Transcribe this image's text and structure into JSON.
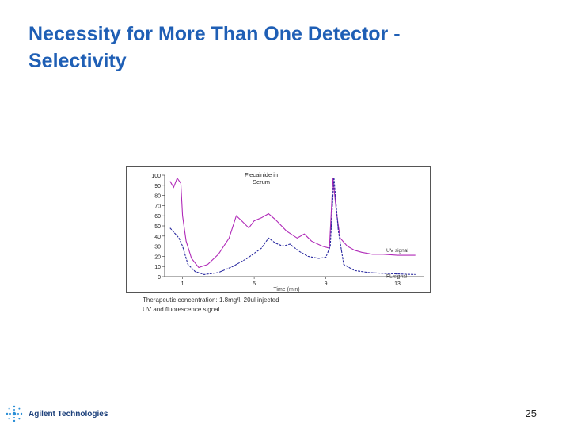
{
  "slide": {
    "title_line1": "Necessity for More Than One Detector -",
    "title_line2": "Selectivity",
    "page_number": "25",
    "logo_text": "Agilent Technologies",
    "caption_1": "Therapeutic concentration: 1.8mg/l. 20ul injected",
    "caption_2": "UV and fluorescence signal",
    "title_color": "#1f5fb5"
  },
  "chart_data": {
    "type": "line",
    "title": "Flecainide in Serum",
    "xlabel": "Time (min)",
    "x_ticks": [
      1,
      5,
      9,
      13
    ],
    "xlim": [
      0,
      14.5
    ],
    "y_ticks": [
      "100",
      "90",
      "80",
      "70",
      "60",
      "50",
      "40",
      "30",
      "20",
      "10",
      "0"
    ],
    "ylim": [
      0,
      100
    ],
    "series": [
      {
        "name": "UV signal",
        "color": "#b02ab8",
        "points": [
          [
            0.3,
            94
          ],
          [
            0.5,
            88
          ],
          [
            0.7,
            97
          ],
          [
            0.9,
            92
          ],
          [
            1.0,
            60
          ],
          [
            1.2,
            35
          ],
          [
            1.5,
            18
          ],
          [
            1.9,
            9
          ],
          [
            2.4,
            12
          ],
          [
            3.0,
            22
          ],
          [
            3.6,
            38
          ],
          [
            4.0,
            60
          ],
          [
            4.3,
            55
          ],
          [
            4.7,
            48
          ],
          [
            5.0,
            55
          ],
          [
            5.4,
            58
          ],
          [
            5.8,
            62
          ],
          [
            6.2,
            56
          ],
          [
            6.8,
            45
          ],
          [
            7.4,
            38
          ],
          [
            7.8,
            42
          ],
          [
            8.2,
            35
          ],
          [
            8.8,
            30
          ],
          [
            9.2,
            28
          ],
          [
            9.4,
            97
          ],
          [
            9.6,
            62
          ],
          [
            9.8,
            38
          ],
          [
            10.2,
            30
          ],
          [
            10.6,
            26
          ],
          [
            11.0,
            24
          ],
          [
            11.6,
            22
          ],
          [
            12.2,
            22
          ],
          [
            13.0,
            21
          ],
          [
            14.0,
            21
          ]
        ]
      },
      {
        "name": "FL signal",
        "color": "#2a2aa0",
        "points": [
          [
            0.3,
            48
          ],
          [
            0.5,
            44
          ],
          [
            0.8,
            38
          ],
          [
            1.0,
            30
          ],
          [
            1.3,
            12
          ],
          [
            1.7,
            5
          ],
          [
            2.2,
            2
          ],
          [
            3.0,
            4
          ],
          [
            3.8,
            10
          ],
          [
            4.6,
            18
          ],
          [
            5.4,
            28
          ],
          [
            5.8,
            38
          ],
          [
            6.2,
            33
          ],
          [
            6.6,
            30
          ],
          [
            7.0,
            32
          ],
          [
            7.5,
            25
          ],
          [
            8.0,
            20
          ],
          [
            8.6,
            18
          ],
          [
            9.0,
            19
          ],
          [
            9.25,
            30
          ],
          [
            9.45,
            98
          ],
          [
            9.7,
            45
          ],
          [
            10.0,
            12
          ],
          [
            10.6,
            6
          ],
          [
            11.4,
            4
          ],
          [
            12.5,
            3
          ],
          [
            14.0,
            2
          ]
        ]
      }
    ],
    "series_labels": [
      "UV signal",
      "FL signal"
    ]
  }
}
